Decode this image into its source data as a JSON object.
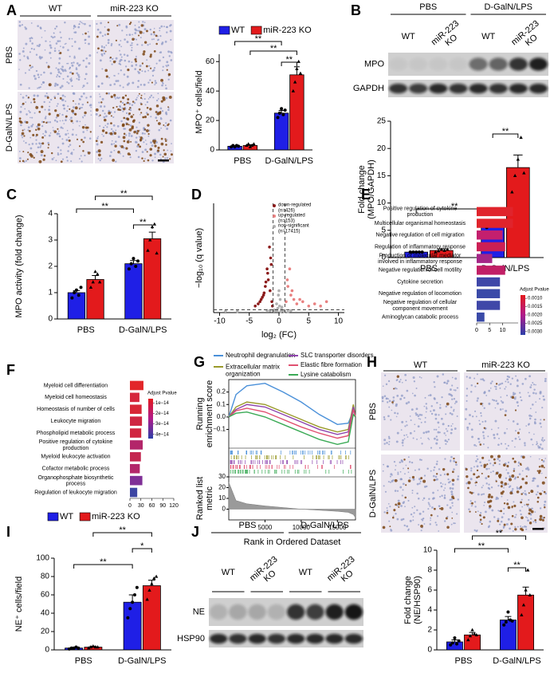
{
  "panels": [
    "A",
    "B",
    "C",
    "D",
    "E",
    "F",
    "G",
    "H",
    "I",
    "J"
  ],
  "A": {
    "columns": [
      "WT",
      "miR-223 KO"
    ],
    "rows": [
      "PBS",
      "D-GalN/LPS"
    ]
  },
  "B": {
    "groups": [
      "PBS",
      "D-GalN/LPS"
    ],
    "lanes": [
      "WT",
      "miR-223\nKO",
      "WT",
      "miR-223\nKO"
    ],
    "bands": [
      "MPO",
      "GAPDH"
    ]
  },
  "H": {
    "columns": [
      "WT",
      "miR-223  KO"
    ],
    "rows": [
      "PBS",
      "D-GalN/LPS"
    ]
  },
  "J": {
    "groups": [
      "PBS",
      "D-GalN/LPS"
    ],
    "lanes": [
      "WT",
      "miR-223\nKO",
      "WT",
      "miR-223\nKO"
    ],
    "bands": [
      "NE",
      "HSP90"
    ]
  },
  "chart_data": [
    {
      "type": "bar",
      "ylabel": "MPO⁺ cells/field",
      "categories": [
        "PBS",
        "D-GalN/LPS"
      ],
      "ylim": [
        0,
        65
      ],
      "yticks": [
        0,
        20,
        40,
        60
      ],
      "series": [
        {
          "name": "WT",
          "color": "#1f1fe6",
          "values": [
            2.5,
            25
          ],
          "errors": [
            0.4,
            1.8
          ],
          "points": [
            [
              2,
              3,
              2,
              3,
              2.5
            ],
            [
              22,
              25,
              28,
              24,
              27
            ]
          ]
        },
        {
          "name": "miR-223 KO",
          "color": "#e31a1c",
          "values": [
            3,
            51
          ],
          "errors": [
            0.6,
            5.5
          ],
          "points": [
            [
              3,
              4,
              2,
              3,
              4
            ],
            [
              40,
              46,
              55,
              60,
              52
            ]
          ]
        }
      ],
      "annotations": [
        "**",
        "**",
        "**"
      ]
    },
    {
      "type": "bar",
      "ylabel": "Fold change\n(MPO/GAPDH)",
      "categories": [
        "PBS",
        "D-GalN/LPS"
      ],
      "ylim": [
        0,
        25
      ],
      "yticks": [
        0,
        5,
        10,
        15,
        20,
        25
      ],
      "series": [
        {
          "color": "#1f1fe6",
          "values": [
            1,
            6
          ],
          "errors": [
            0.1,
            0.4
          ],
          "points": [
            [
              1,
              1,
              1,
              1,
              1
            ],
            [
              5.5,
              6,
              6.5,
              5.8,
              6.2
            ]
          ]
        },
        {
          "color": "#e31a1c",
          "values": [
            1.3,
            16.5
          ],
          "errors": [
            0.3,
            2.3
          ],
          "points": [
            [
              1,
              1.2,
              1.5,
              1.3,
              1.5
            ],
            [
              12,
              15,
              18,
              22,
              15.5
            ]
          ]
        }
      ],
      "annotations": [
        "**",
        "**"
      ]
    },
    {
      "type": "bar",
      "ylabel": "MPO activity (fold change)",
      "categories": [
        "PBS",
        "D-GalN/LPS"
      ],
      "ylim": [
        0,
        4
      ],
      "yticks": [
        0,
        1,
        2,
        3,
        4
      ],
      "series": [
        {
          "color": "#1f1fe6",
          "values": [
            1.0,
            2.1
          ],
          "errors": [
            0.08,
            0.12
          ],
          "points": [
            [
              0.8,
              1.0,
              1.1,
              0.9,
              1.2
            ],
            [
              1.9,
              2.1,
              2.3,
              2.0,
              2.2
            ]
          ]
        },
        {
          "color": "#e31a1c",
          "values": [
            1.5,
            3.05
          ],
          "errors": [
            0.15,
            0.25
          ],
          "points": [
            [
              1.2,
              1.4,
              1.8,
              1.7,
              1.4
            ],
            [
              2.6,
              3.0,
              3.5,
              3.6,
              2.5
            ]
          ]
        }
      ],
      "annotations": [
        "**",
        "**",
        "**"
      ]
    },
    {
      "type": "scatter",
      "xlabel": "log₂ (FC)",
      "ylabel": "−log₁₀ (q value)",
      "xlim": [
        -11,
        11
      ],
      "xticks": [
        -10,
        -5,
        0,
        5,
        10
      ],
      "ylim": [
        0,
        50
      ],
      "cutoffs": {
        "x": [
          -1,
          1
        ],
        "y": 1.3
      },
      "series": [
        {
          "name": "down-regulated\n(n=426)",
          "color": "#8b1a1a",
          "x": [
            -1.2,
            -1.5,
            -1.8,
            -2.0,
            -2.3,
            -2.6,
            -3.0,
            -3.5,
            -4.0,
            -1.4,
            -1.9,
            -2.5,
            -1.1,
            -1.6,
            -2.2,
            -3.2,
            -2.8,
            -1.3
          ],
          "values": [
            5,
            10,
            15,
            20,
            12,
            8,
            6,
            4,
            3,
            25,
            18,
            9,
            3,
            30,
            14,
            5,
            7,
            22
          ]
        },
        {
          "name": "up-regulated\n(n=153)",
          "color": "#e88080",
          "x": [
            1.2,
            1.5,
            2,
            2.5,
            3,
            4,
            5,
            6,
            7,
            1.8,
            2.2,
            1.4,
            3.5,
            8
          ],
          "values": [
            5,
            12,
            8,
            6,
            4,
            5,
            3,
            4,
            3,
            20,
            10,
            15,
            6,
            5
          ]
        },
        {
          "name": "non-significant\n(n=17415)",
          "color": "#b0b0b0",
          "x": [
            -0.5,
            0.3,
            -0.2,
            0.6,
            0.8,
            -0.8,
            0.1,
            -0.4,
            0.5,
            -0.9,
            0.2,
            0.7,
            -0.6,
            0.4,
            -0.1,
            0.9,
            -0.3,
            0.0,
            -7,
            -9,
            2,
            -2,
            1.5,
            -1.5
          ],
          "values": [
            1,
            0.5,
            2,
            1,
            0.8,
            1.2,
            3,
            4,
            2.5,
            0.6,
            6,
            0.9,
            1.1,
            1.5,
            8,
            0.4,
            0.7,
            10,
            0.5,
            0.6,
            0.9,
            1.0,
            0.3,
            0.8
          ]
        }
      ]
    },
    {
      "type": "barh",
      "categories": [
        "Positive regulation of cytokine\nproduction",
        "Multicellular organismal homeostasis",
        "Negative regulation of cell migration",
        "Regulation of inflammatory response",
        "Production of molecular mediator\ninvolved in inflammatory response",
        "Negative regulation of cell motility",
        "Cytokine secretion",
        "Negative regulation of locomotion",
        "Negative regulation of cellular\ncomponent movement",
        "Aminoglycan catabolic process"
      ],
      "values": [
        14,
        14,
        10,
        11,
        6,
        11,
        9,
        9,
        9,
        3
      ],
      "colors": [
        "#e0242c",
        "#e0242c",
        "#c41f6e",
        "#cc1f55",
        "#a52687",
        "#c11f66",
        "#3f47a8",
        "#3a4aa8",
        "#3f47a8",
        "#3a4aa8"
      ],
      "xlim": [
        0,
        16
      ],
      "xticks": [
        0,
        5,
        10
      ],
      "colorbar_title": "Adjust Pvalue",
      "colorbar_colors": [
        "#e31a1c",
        "#b01a8a",
        "#2b3fa8"
      ],
      "colorbar_lim": [
        0.0008,
        0.0032
      ],
      "colorbar_ticks": [
        {
          "value": 0.001,
          "label": "0.0010"
        },
        {
          "value": 0.0015,
          "label": "0.0015"
        },
        {
          "value": 0.002,
          "label": "0.0020"
        },
        {
          "value": 0.0025,
          "label": "0.0025"
        },
        {
          "value": 0.003,
          "label": "0.0030"
        }
      ]
    },
    {
      "type": "barh",
      "categories": [
        "Myeloid cell differentiation",
        "Myeloid cell homeostasis",
        "Homeostasis of number of cells",
        "Leukocyte migration",
        "Phospholipid metabolic process",
        "Positive regulation of cytokine\nproduction",
        "Myeloid leukocyte activation",
        "Cofactor metabolic process",
        "Organophosphate biosynthetic\nprocess",
        "Regulation of leukocyte migration"
      ],
      "values": [
        37,
        26,
        32,
        33,
        31,
        35,
        30,
        27,
        34,
        20
      ],
      "colors": [
        "#e2262a",
        "#d6263c",
        "#d82636",
        "#cf2642",
        "#d02640",
        "#b3266a",
        "#c42650",
        "#b3266a",
        "#7f2f96",
        "#3d46a3"
      ],
      "xlim": [
        0,
        120
      ],
      "xticks": [
        0,
        30,
        60,
        90,
        120
      ],
      "colorbar_title": "Adjust Pvalue",
      "colorbar_colors": [
        "#e31a1c",
        "#b01a8a",
        "#2b3fa8"
      ],
      "colorbar_lim": [
        6e-15,
        4.4e-14
      ],
      "colorbar_ticks": [
        {
          "value": 1e-14,
          "label": "1e−14"
        },
        {
          "value": 2e-14,
          "label": "2e−14"
        },
        {
          "value": 3e-14,
          "label": "3e−14"
        },
        {
          "value": 4e-14,
          "label": "4e−14"
        }
      ]
    },
    {
      "type": "gsea",
      "ylabel": "Running\nenrichment score",
      "xlabel": "Rank in Ordered Dataset",
      "x": [
        0,
        1000,
        2500,
        5000,
        7500,
        10000,
        12500,
        15000,
        16500,
        17200,
        17500
      ],
      "xlim": [
        0,
        17500
      ],
      "xticks": [
        5000,
        10000,
        15000
      ],
      "ylim": [
        -0.25,
        0.3
      ],
      "yticks": [
        {
          "value": -0.1,
          "label": "−0.1"
        },
        {
          "value": 0,
          "label": "0.0"
        },
        0.1,
        0.2
      ],
      "series": [
        {
          "name": "Neutrophil degranulation",
          "color": "#4a90d9",
          "values": [
            0,
            0.18,
            0.25,
            0.27,
            0.2,
            0.12,
            0.02,
            -0.06,
            -0.05,
            0.05,
            0
          ]
        },
        {
          "name": "Extracellular matrix\norganization",
          "color": "#9a9a2a",
          "values": [
            0,
            0.08,
            0.12,
            0.1,
            0.04,
            -0.02,
            -0.08,
            -0.12,
            -0.1,
            0.1,
            0
          ]
        },
        {
          "name": "SLC transporter disorders",
          "color": "#8e44ad",
          "values": [
            0,
            0.06,
            0.1,
            0.08,
            0.02,
            -0.04,
            -0.1,
            -0.14,
            -0.12,
            0.08,
            0
          ]
        },
        {
          "name": "Elastic fibre formation",
          "color": "#e05070",
          "values": [
            0,
            0.05,
            0.07,
            0.04,
            -0.02,
            -0.08,
            -0.13,
            -0.17,
            -0.15,
            0.06,
            0
          ]
        },
        {
          "name": "Lysine catabolism",
          "color": "#3aaa55",
          "values": [
            0,
            0.03,
            0.04,
            0.0,
            -0.06,
            -0.12,
            -0.18,
            -0.22,
            -0.2,
            0.02,
            0
          ]
        }
      ],
      "metric": {
        "ylabel": "Ranked list\nmetric",
        "values": [
          25,
          8,
          5,
          3,
          1.5,
          0,
          -1,
          -2,
          -3,
          -5,
          -8
        ],
        "ylim": [
          -10,
          30
        ],
        "yticks": [
          0,
          10,
          20,
          30
        ]
      }
    },
    {
      "type": "bar",
      "ylabel": "NE⁺ cells/field",
      "categories": [
        "PBS",
        "D-GalN/LPS"
      ],
      "ylim": [
        0,
        100
      ],
      "yticks": [
        0,
        20,
        40,
        60,
        80,
        100
      ],
      "series": [
        {
          "name": "WT",
          "color": "#1f1fe6",
          "values": [
            2,
            52
          ],
          "errors": [
            0.5,
            8
          ],
          "points": [
            [
              1,
              2,
              2,
              3,
              2
            ],
            [
              35,
              45,
              52,
              60,
              68
            ]
          ]
        },
        {
          "name": "miR-223 KO",
          "color": "#e31a1c",
          "values": [
            3,
            70
          ],
          "errors": [
            1,
            6
          ],
          "points": [
            [
              2,
              3,
              4,
              3,
              3
            ],
            [
              55,
              65,
              72,
              78,
              80
            ]
          ]
        }
      ],
      "annotations": [
        "**",
        "*",
        "**"
      ]
    },
    {
      "type": "bar",
      "ylabel": "Fold change\n(NE/HSP90)",
      "categories": [
        "PBS",
        "D-GalN/LPS"
      ],
      "ylim": [
        0,
        10
      ],
      "yticks": [
        0,
        2,
        4,
        6,
        8,
        10
      ],
      "series": [
        {
          "color": "#1f1fe6",
          "values": [
            0.8,
            3.0
          ],
          "errors": [
            0.2,
            0.35
          ],
          "points": [
            [
              0.5,
              0.7,
              1.2,
              0.6,
              0.9
            ],
            [
              2.5,
              2.8,
              3.8,
              3.0,
              2.9
            ]
          ]
        },
        {
          "color": "#e31a1c",
          "values": [
            1.5,
            5.5
          ],
          "errors": [
            0.25,
            0.8
          ],
          "points": [
            [
              1.0,
              1.4,
              2.0,
              1.6,
              1.5
            ],
            [
              3.5,
              4.5,
              6.0,
              8.0,
              5.5
            ]
          ]
        }
      ],
      "annotations": [
        "**",
        "**",
        "**"
      ]
    }
  ]
}
